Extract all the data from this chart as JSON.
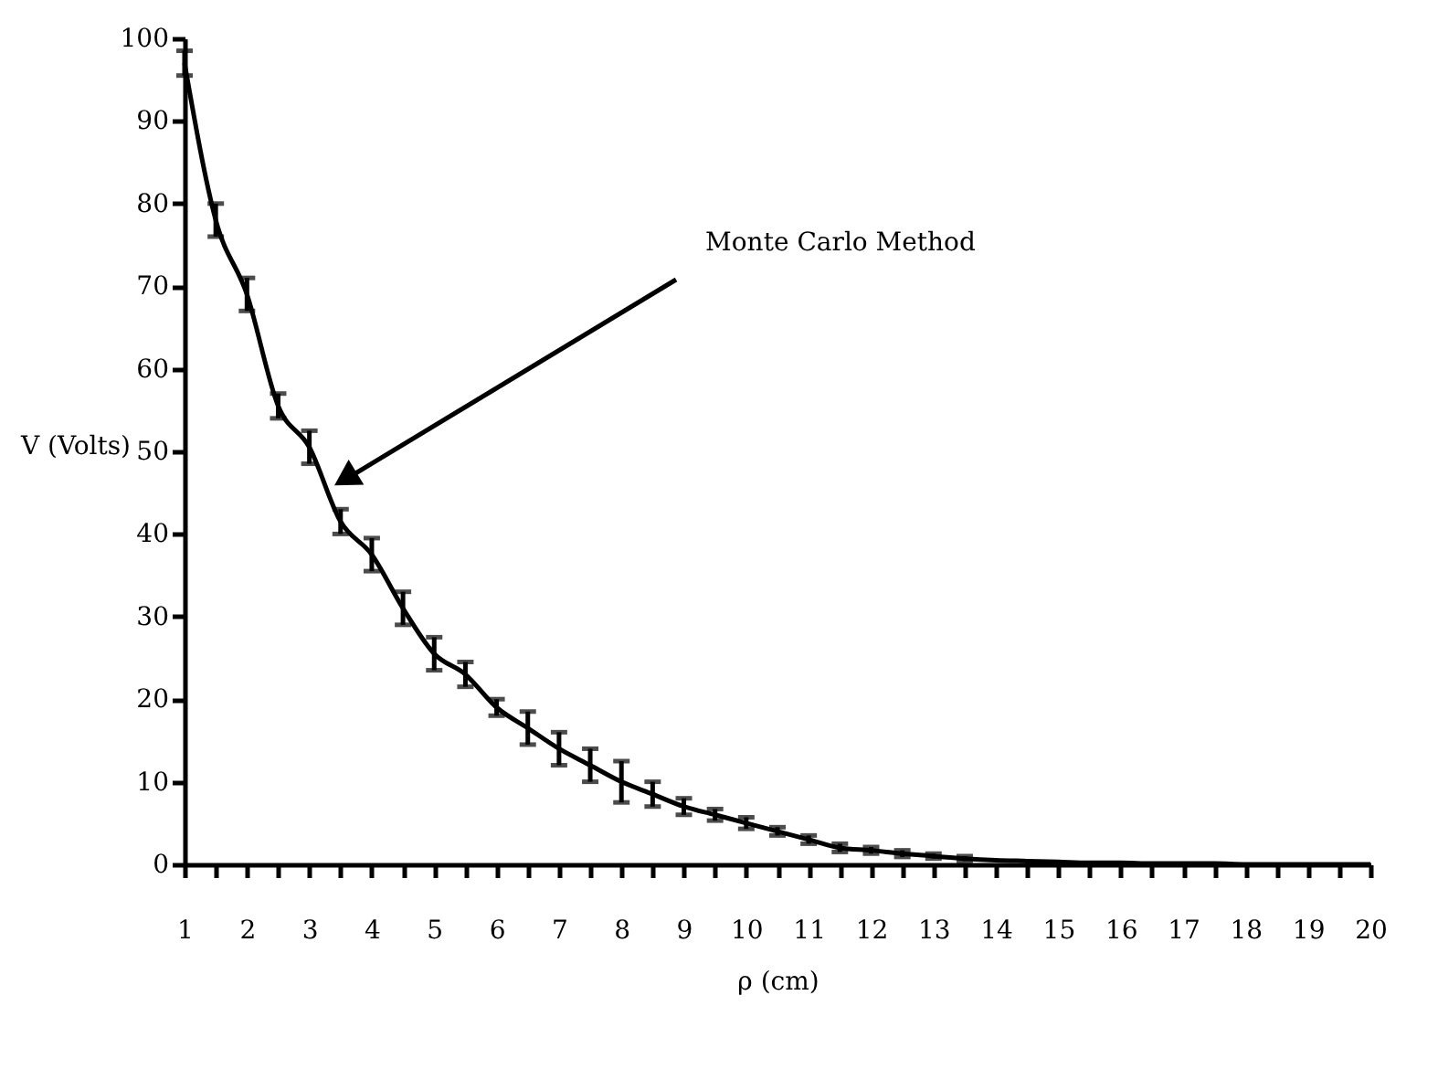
{
  "chart_data": {
    "type": "line",
    "xlabel": "ρ (cm)",
    "ylabel": "V (Volts)",
    "x": [
      1,
      1.5,
      2,
      2.5,
      3,
      3.5,
      4,
      4.5,
      5,
      5.5,
      6,
      6.5,
      7,
      7.5,
      8,
      8.5,
      9,
      9.5,
      10,
      10.5,
      11,
      11.5,
      12,
      12.5,
      13,
      13.5,
      14,
      14.5,
      15,
      15.5,
      16,
      16.5,
      17,
      17.5,
      18,
      18.5,
      19,
      19.5,
      20
    ],
    "series": [
      {
        "color": "#000000",
        "values": [
          97,
          78,
          69,
          55.5,
          50.5,
          41.5,
          37.5,
          31,
          25.5,
          23,
          19,
          16.5,
          14,
          12,
          10,
          8.5,
          7,
          6,
          5,
          4,
          3,
          2,
          1.7,
          1.3,
          1,
          0.7,
          0.5,
          0.4,
          0.3,
          0.2,
          0.2,
          0.1,
          0.1,
          0.1,
          0,
          0,
          0,
          0,
          0
        ],
        "errors": [
          1.5,
          2,
          2,
          1.5,
          2,
          1.5,
          2,
          2,
          2,
          1.5,
          1,
          2,
          2,
          2,
          2.5,
          1.5,
          1,
          0.7,
          0.7,
          0.5,
          0.5,
          0.5,
          0.4,
          0.4,
          0.3,
          0.3,
          null,
          null,
          null,
          null,
          null,
          null,
          null,
          null,
          null,
          null,
          null,
          null,
          null
        ]
      }
    ],
    "xlim": [
      1,
      20
    ],
    "ylim": [
      0,
      100
    ],
    "xticks": [
      1,
      {
        "value": 1.5,
        "label": null
      },
      2,
      {
        "value": 2.5,
        "label": null
      },
      3,
      {
        "value": 3.5,
        "label": null
      },
      4,
      {
        "value": 4.5,
        "label": null
      },
      5,
      {
        "value": 5.5,
        "label": null
      },
      6,
      {
        "value": 6.5,
        "label": null
      },
      7,
      {
        "value": 7.5,
        "label": null
      },
      8,
      {
        "value": 8.5,
        "label": null
      },
      9,
      {
        "value": 9.5,
        "label": null
      },
      10,
      {
        "value": 10.5,
        "label": null
      },
      11,
      {
        "value": 11.5,
        "label": null
      },
      12,
      {
        "value": 12.5,
        "label": null
      },
      13,
      {
        "value": 13.5,
        "label": null
      },
      14,
      {
        "value": 14.5,
        "label": null
      },
      15,
      {
        "value": 15.5,
        "label": null
      },
      16,
      {
        "value": 16.5,
        "label": null
      },
      17,
      {
        "value": 17.5,
        "label": null
      },
      18,
      {
        "value": 18.5,
        "label": null
      },
      19,
      {
        "value": 19.5,
        "label": null
      },
      20
    ],
    "yticks": [
      0,
      10,
      20,
      30,
      40,
      50,
      60,
      70,
      80,
      90,
      100
    ],
    "annotations": [
      "Monte Carlo Method"
    ],
    "grid": false,
    "marker": "none",
    "line_style": "solid"
  }
}
